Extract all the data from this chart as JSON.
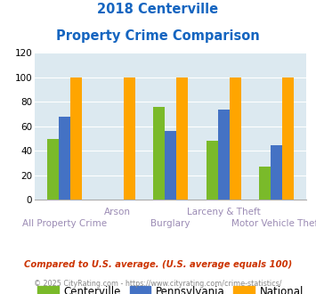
{
  "title_line1": "2018 Centerville",
  "title_line2": "Property Crime Comparison",
  "categories": [
    "All Property Crime",
    "Arson",
    "Burglary",
    "Larceny & Theft",
    "Motor Vehicle Theft"
  ],
  "centerville": [
    50,
    0,
    76,
    48,
    27
  ],
  "pennsylvania": [
    68,
    0,
    56,
    74,
    45
  ],
  "national": [
    100,
    100,
    100,
    100,
    100
  ],
  "bar_color_centerville": "#7aba2a",
  "bar_color_pennsylvania": "#4472c4",
  "bar_color_national": "#ffa500",
  "ylim": [
    0,
    120
  ],
  "yticks": [
    0,
    20,
    40,
    60,
    80,
    100,
    120
  ],
  "title_color": "#1565c0",
  "background_color": "#dce9f0",
  "legend_labels": [
    "Centerville",
    "Pennsylvania",
    "National"
  ],
  "footnote1": "Compared to U.S. average. (U.S. average equals 100)",
  "footnote2": "© 2025 CityRating.com - https://www.cityrating.com/crime-statistics/",
  "xlabel_color": "#9b8bb4",
  "xlabel_fontsize": 7.5,
  "row1_indices": [
    1,
    3
  ],
  "row2_indices": [
    0,
    2,
    4
  ],
  "bar_width": 0.22
}
